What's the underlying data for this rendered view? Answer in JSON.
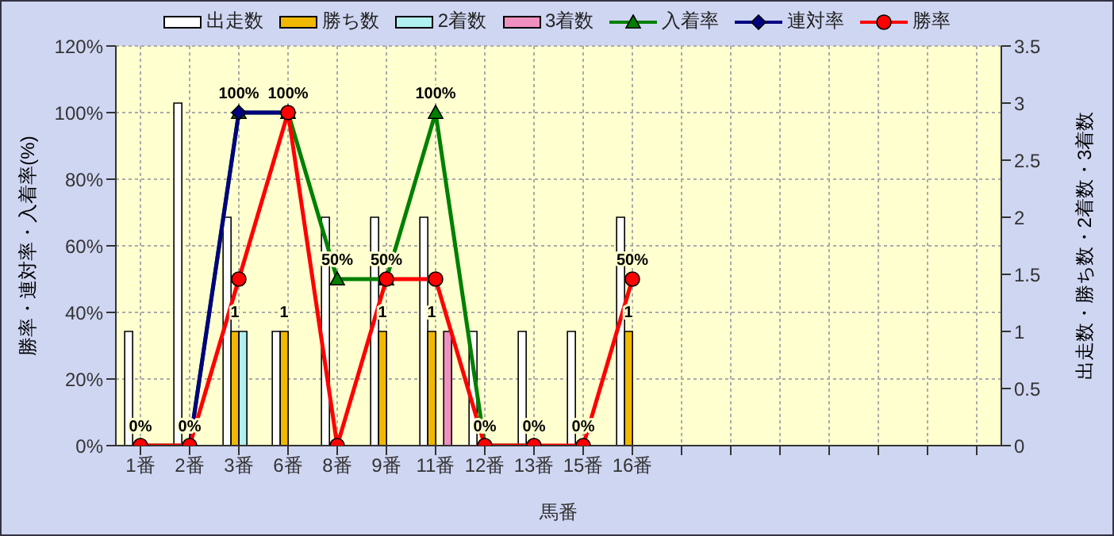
{
  "chart_data": {
    "type": "bar",
    "categories": [
      "1番",
      "2番",
      "3番",
      "6番",
      "8番",
      "9番",
      "11番",
      "12番",
      "13番",
      "15番",
      "16番",
      null,
      null,
      null,
      null,
      null,
      null,
      null
    ],
    "xlabel": "馬番",
    "ylabel": "勝率・連対率・入着率(%)",
    "y2label": "出走数・勝ち数・2着数・3着数",
    "series": [
      {
        "name": "出走数",
        "axis": "y2",
        "color": "#ffffff",
        "values": [
          1,
          3,
          2,
          1,
          2,
          2,
          2,
          1,
          1,
          1,
          2,
          null,
          null,
          null,
          null,
          null,
          null,
          null
        ]
      },
      {
        "name": "勝ち数",
        "axis": "y2",
        "color": "#f0b800",
        "values": [
          0,
          0,
          1,
          1,
          0,
          1,
          1,
          0,
          0,
          0,
          1,
          null,
          null,
          null,
          null,
          null,
          null,
          null
        ],
        "value_labels": [
          null,
          null,
          "1",
          "1",
          null,
          "1",
          "1",
          null,
          null,
          null,
          "1",
          null,
          null,
          null,
          null,
          null,
          null,
          null
        ]
      },
      {
        "name": "2着数",
        "axis": "y2",
        "color": "#b0f0f0",
        "values": [
          0,
          0,
          1,
          0,
          0,
          0,
          0,
          0,
          0,
          0,
          0,
          null,
          null,
          null,
          null,
          null,
          null,
          null
        ]
      },
      {
        "name": "3着数",
        "axis": "y2",
        "color": "#f090c0",
        "values": [
          0,
          0,
          0,
          0,
          0,
          0,
          1,
          0,
          0,
          0,
          0,
          null,
          null,
          null,
          null,
          null,
          null,
          null
        ]
      },
      {
        "name": "入着率",
        "type": "line",
        "axis": "y",
        "color": "#008000",
        "marker": "triangle",
        "values": [
          0,
          0,
          100,
          100,
          50,
          50,
          100,
          0,
          0,
          null,
          null,
          null,
          null,
          null,
          null,
          null,
          null,
          null
        ],
        "value_labels": [
          "0%",
          "0%",
          "100%",
          "100%",
          "50%",
          "50%",
          "100%",
          "0%",
          "0%",
          null,
          null,
          null,
          null,
          null,
          null,
          null,
          null,
          null
        ]
      },
      {
        "name": "連対率",
        "type": "line",
        "axis": "y",
        "color": "#000080",
        "marker": "diamond",
        "values": [
          null,
          0,
          100,
          100,
          null,
          null,
          null,
          null,
          null,
          null,
          null,
          null,
          null,
          null,
          null,
          null,
          null,
          null
        ]
      },
      {
        "name": "勝率",
        "type": "line",
        "axis": "y",
        "color": "#ff0000",
        "marker": "circle",
        "values": [
          0,
          0,
          50,
          100,
          0,
          50,
          50,
          0,
          0,
          0,
          50,
          null,
          null,
          null,
          null,
          null,
          null,
          null
        ],
        "value_labels": [
          null,
          null,
          null,
          null,
          null,
          null,
          null,
          null,
          null,
          "0%",
          "50%",
          null,
          null,
          null,
          null,
          null,
          null,
          null
        ]
      }
    ],
    "ylim": [
      0,
      120
    ],
    "yticks": [
      {
        "value": 0,
        "label": "0%"
      },
      {
        "value": 20,
        "label": "20%"
      },
      {
        "value": 40,
        "label": "40%"
      },
      {
        "value": 60,
        "label": "60%"
      },
      {
        "value": 80,
        "label": "80%"
      },
      {
        "value": 100,
        "label": "100%"
      },
      {
        "value": 120,
        "label": "120%"
      }
    ],
    "y2lim": [
      0,
      3.5
    ],
    "y2ticks": [
      0,
      0.5,
      1,
      1.5,
      2,
      2.5,
      3,
      3.5
    ],
    "grid": true,
    "legend": "top",
    "line_style": "solid"
  }
}
